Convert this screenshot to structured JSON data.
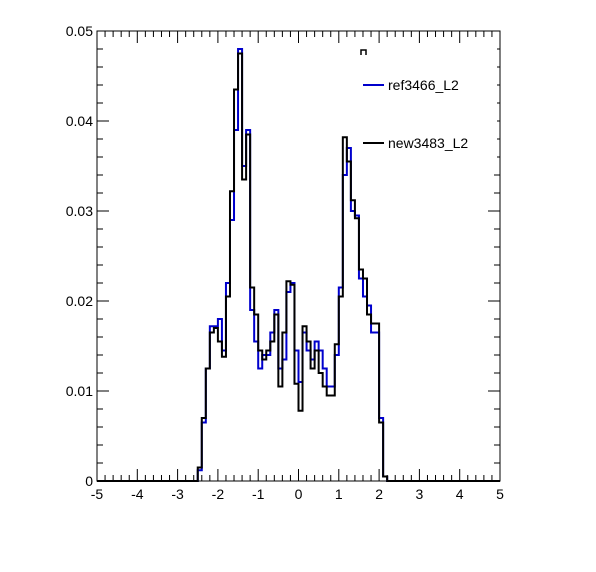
{
  "chart_data": {
    "type": "histogram",
    "title": "",
    "xlabel": "",
    "ylabel": "",
    "xlim": [
      -5,
      5
    ],
    "ylim": [
      0,
      0.05
    ],
    "x_ticks": [
      "-5",
      "-4",
      "-3",
      "-2",
      "-1",
      "0",
      "1",
      "2",
      "3",
      "4",
      "5"
    ],
    "y_ticks": [
      "0",
      "0.01",
      "0.02",
      "0.03",
      "0.04",
      "0.05"
    ],
    "grid": false,
    "legend_position": "top-right",
    "bin_edges_start": -5,
    "bin_width": 0.1,
    "series": [
      {
        "name": "ref3466_L2",
        "color": "#0000cc",
        "values": [
          0,
          0,
          0,
          0,
          0,
          0,
          0,
          0,
          0,
          0,
          0,
          0,
          0,
          0,
          0,
          0,
          0,
          0,
          0,
          0,
          0,
          0,
          0,
          0,
          0,
          0.0012,
          0.0065,
          0.0125,
          0.0172,
          0.0172,
          0.018,
          0.0145,
          0.022,
          0.029,
          0.039,
          0.048,
          0.035,
          0.039,
          0.019,
          0.0155,
          0.0125,
          0.014,
          0.014,
          0.0165,
          0.019,
          0.0125,
          0.0135,
          0.021,
          0.022,
          0.0145,
          0.011,
          0.0165,
          0.0145,
          0.0135,
          0.0155,
          0.0145,
          0.0125,
          0.0105,
          0.0105,
          0.014,
          0.0215,
          0.034,
          0.037,
          0.03,
          0.0295,
          0.0225,
          0.0205,
          0.0195,
          0.0165,
          0.0165,
          0.007,
          0.0005,
          0,
          0,
          0,
          0,
          0,
          0,
          0,
          0,
          0,
          0,
          0,
          0,
          0,
          0,
          0,
          0,
          0,
          0,
          0,
          0,
          0,
          0,
          0,
          0,
          0,
          0,
          0,
          0
        ]
      },
      {
        "name": "new3483_L2",
        "color": "#000000",
        "values": [
          0,
          0,
          0,
          0,
          0,
          0,
          0,
          0,
          0,
          0,
          0,
          0,
          0,
          0,
          0,
          0,
          0,
          0,
          0,
          0,
          0,
          0,
          0,
          0,
          0,
          0.0015,
          0.007,
          0.0125,
          0.0165,
          0.017,
          0.0155,
          0.0138,
          0.0205,
          0.0322,
          0.0435,
          0.0475,
          0.0335,
          0.0385,
          0.0215,
          0.0185,
          0.0145,
          0.0135,
          0.0145,
          0.0155,
          0.0185,
          0.0105,
          0.0165,
          0.0222,
          0.0218,
          0.0108,
          0.0078,
          0.0172,
          0.0155,
          0.0125,
          0.0145,
          0.012,
          0.0105,
          0.0095,
          0.0095,
          0.0152,
          0.0205,
          0.0382,
          0.0355,
          0.0312,
          0.0292,
          0.0235,
          0.0225,
          0.0185,
          0.0175,
          0.0175,
          0.0065,
          0.0005,
          0,
          0,
          0,
          0,
          0,
          0,
          0,
          0,
          0,
          0,
          0,
          0,
          0,
          0,
          0,
          0,
          0,
          0,
          0,
          0,
          0,
          0,
          0,
          0,
          0,
          0,
          0,
          0
        ]
      }
    ]
  }
}
